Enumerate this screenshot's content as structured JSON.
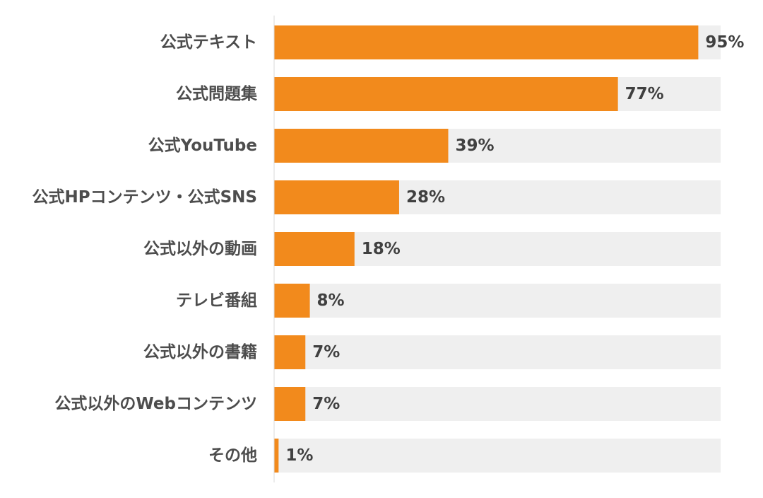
{
  "chart_data": {
    "type": "bar",
    "orientation": "horizontal",
    "categories": [
      "公式テキスト",
      "公式問題集",
      "公式YouTube",
      "公式HPコンテンツ・公式SNS",
      "公式以外の動画",
      "テレビ番組",
      "公式以外の書籍",
      "公式以外のWebコンテンツ",
      "その他"
    ],
    "values": [
      95,
      77,
      39,
      28,
      18,
      8,
      7,
      7,
      1
    ],
    "value_labels": [
      "95%",
      "77%",
      "39%",
      "28%",
      "18%",
      "8%",
      "7%",
      "7%",
      "1%"
    ],
    "unit": "%",
    "xlim": [
      0,
      100
    ],
    "title": "",
    "xlabel": "",
    "ylabel": "",
    "grid": false,
    "legend": "none",
    "bar_color": "#f28a1c",
    "track_color": "#efefef",
    "axis_color": "#d9d9d9"
  }
}
